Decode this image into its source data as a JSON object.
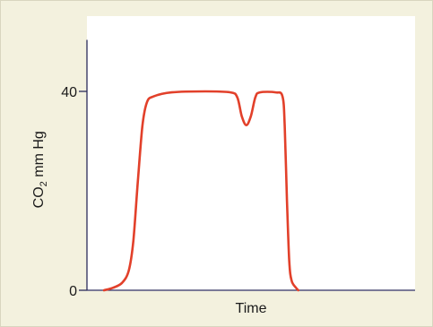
{
  "chart_data": {
    "type": "line",
    "xlabel": "Time",
    "ylabel_main": "CO",
    "ylabel_sub": "2",
    "ylabel_rest": " mm Hg",
    "ylim": [
      0,
      50
    ],
    "yticks": [
      {
        "value": 0,
        "label": "0"
      },
      {
        "value": 40,
        "label": "40"
      }
    ],
    "xlim": [
      0,
      100
    ],
    "grid": false,
    "series": [
      {
        "color": "#e2402a",
        "points": [
          [
            0,
            0
          ],
          [
            4,
            0.5
          ],
          [
            8,
            1.5
          ],
          [
            11,
            4
          ],
          [
            13,
            10
          ],
          [
            15,
            22
          ],
          [
            17,
            33
          ],
          [
            19,
            37.8
          ],
          [
            22,
            39.0
          ],
          [
            30,
            39.8
          ],
          [
            45,
            40.0
          ],
          [
            56,
            39.8
          ],
          [
            59,
            38.8
          ],
          [
            61,
            35.0
          ],
          [
            63,
            33.2
          ],
          [
            65,
            35.0
          ],
          [
            67,
            38.8
          ],
          [
            69,
            39.8
          ],
          [
            76,
            39.8
          ],
          [
            79,
            39.0
          ],
          [
            80,
            33
          ],
          [
            81,
            18
          ],
          [
            82,
            6
          ],
          [
            83,
            2
          ],
          [
            85,
            0.5
          ],
          [
            86,
            0
          ]
        ]
      }
    ]
  },
  "colors": {
    "background": "#f3f1de",
    "plot_area": "#ffffff",
    "axis": "#2b2b5a",
    "line": "#e2402a"
  }
}
